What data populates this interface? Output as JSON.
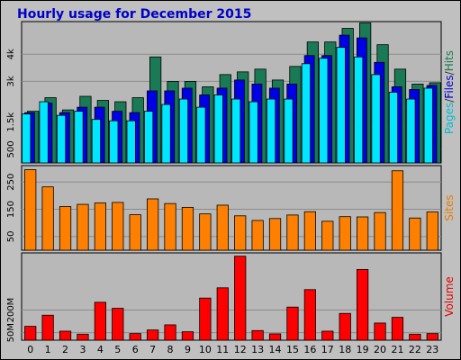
{
  "chart_data": {
    "title": "Hourly usage for December 2015",
    "type": "bar",
    "categories": [
      "0",
      "1",
      "2",
      "3",
      "4",
      "5",
      "6",
      "7",
      "8",
      "9",
      "10",
      "11",
      "12",
      "13",
      "14",
      "15",
      "16",
      "17",
      "18",
      "19",
      "20",
      "21",
      "22",
      "23"
    ],
    "panels": [
      {
        "name": "top",
        "ylim": [
          0,
          5200
        ],
        "yticks": [
          {
            "value": 500,
            "label": "500"
          },
          {
            "value": 1500,
            "label": "1.5k"
          },
          {
            "value": 3000,
            "label": "3k"
          },
          {
            "value": 4000,
            "label": "4k"
          }
        ],
        "series": [
          {
            "name": "Hits",
            "color": "#1a7a55",
            "values": [
              1900,
              2400,
              1950,
              2450,
              2300,
              2250,
              2400,
              3900,
              3000,
              3000,
              2800,
              3250,
              3350,
              3450,
              3050,
              3550,
              4450,
              4450,
              4950,
              5150,
              4350,
              3450,
              2900,
              2950
            ]
          },
          {
            "name": "Files",
            "color": "#0000e6",
            "values": [
              1850,
              2200,
              1850,
              2050,
              2050,
              1900,
              1850,
              2650,
              2650,
              2750,
              2500,
              2750,
              3050,
              2900,
              2750,
              2900,
              3950,
              3950,
              4700,
              4600,
              3700,
              2800,
              2700,
              2850
            ]
          },
          {
            "name": "Pages",
            "color": "#00e6ff",
            "values": [
              1800,
              2250,
              1750,
              1900,
              1600,
              1550,
              1550,
              1900,
              2150,
              2350,
              2050,
              2500,
              2350,
              2250,
              2350,
              2350,
              3650,
              3850,
              4250,
              3900,
              3250,
              2600,
              2350,
              2750
            ]
          }
        ],
        "axis_labels": [
          {
            "text": "Pages",
            "color": "#00bcd4"
          },
          {
            "text": "/",
            "color": "#333333"
          },
          {
            "text": "Files",
            "color": "#0000cc"
          },
          {
            "text": "/",
            "color": "#333333"
          },
          {
            "text": "Hits",
            "color": "#1a7a55"
          }
        ]
      },
      {
        "name": "middle",
        "ylim": [
          0,
          310
        ],
        "yticks": [
          {
            "value": 50,
            "label": "50"
          },
          {
            "value": 150,
            "label": "150"
          },
          {
            "value": 250,
            "label": "250"
          }
        ],
        "series": [
          {
            "name": "Sites",
            "color": "#ff8000",
            "values": [
              295,
              232,
              160,
              168,
              173,
              175,
              130,
              188,
              171,
              157,
              133,
              165,
              126,
              109,
              116,
              129,
              141,
              106,
              123,
              122,
              138,
              291,
              118,
              140
            ]
          }
        ],
        "axis_labels": [
          {
            "text": "Sites",
            "color": "#e67e00"
          }
        ]
      },
      {
        "name": "bottom",
        "ylim": [
          0,
          290
        ],
        "yticks": [
          {
            "value": 25,
            "label": "50M"
          },
          {
            "value": 100,
            "label": "200M"
          }
        ],
        "series": [
          {
            "name": "Volume",
            "color": "#ff0000",
            "values": [
              46,
              83,
              30,
              20,
              126,
              106,
              22,
              34,
              51,
              28,
              140,
              174,
              279,
              32,
              21,
              110,
              168,
              30,
              89,
              235,
              57,
              76,
              20,
              22
            ]
          }
        ],
        "axis_labels": [
          {
            "text": "Volume",
            "color": "#e60000"
          }
        ]
      }
    ],
    "colors": {
      "background": "#c0c0c0",
      "panel": "#b8b8b8",
      "title": "#0000c8",
      "gridline": "#8c8c8c"
    }
  }
}
